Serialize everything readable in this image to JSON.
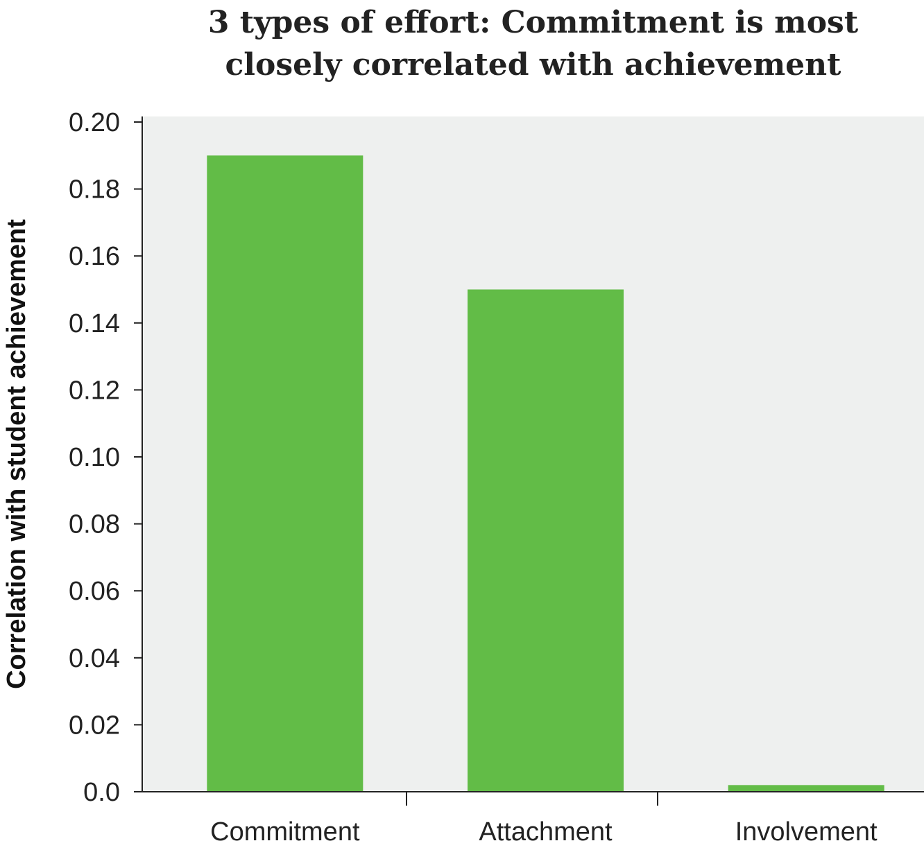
{
  "chart_data": {
    "type": "bar",
    "title": "3 types of effort: Commitment is most\nclosely correlated with achievement",
    "xlabel": "",
    "ylabel": "Correlation with student achievement",
    "categories": [
      "Commitment",
      "Attachment",
      "Involvement"
    ],
    "values": [
      0.19,
      0.15,
      0.002
    ],
    "ylim": [
      0,
      0.2
    ],
    "yticks": [
      "0.0",
      "0.02",
      "0.04",
      "0.06",
      "0.08",
      "0.10",
      "0.12",
      "0.14",
      "0.16",
      "0.18",
      "0.20"
    ],
    "grid": false,
    "legend": "none",
    "colors": {
      "bar": "#62bc47",
      "plot_bg": "#eef0ef",
      "axis": "#222222"
    }
  }
}
